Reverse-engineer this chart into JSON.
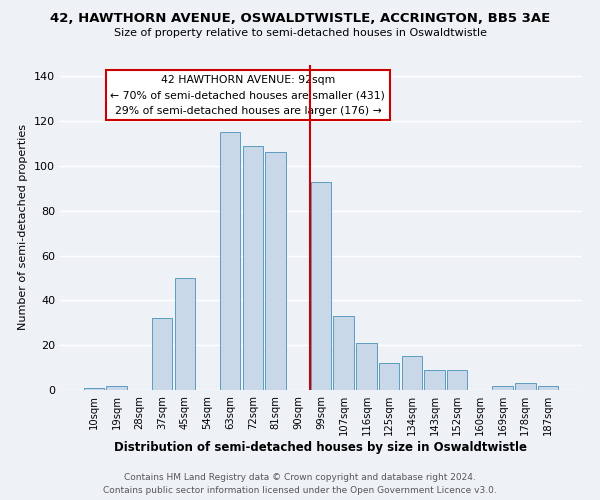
{
  "title1": "42, HAWTHORN AVENUE, OSWALDTWISTLE, ACCRINGTON, BB5 3AE",
  "title2": "Size of property relative to semi-detached houses in Oswaldtwistle",
  "xlabel": "Distribution of semi-detached houses by size in Oswaldtwistle",
  "ylabel": "Number of semi-detached properties",
  "bin_labels": [
    "10sqm",
    "19sqm",
    "28sqm",
    "37sqm",
    "45sqm",
    "54sqm",
    "63sqm",
    "72sqm",
    "81sqm",
    "90sqm",
    "99sqm",
    "107sqm",
    "116sqm",
    "125sqm",
    "134sqm",
    "143sqm",
    "152sqm",
    "160sqm",
    "169sqm",
    "178sqm",
    "187sqm"
  ],
  "bar_heights": [
    1,
    2,
    0,
    32,
    50,
    0,
    115,
    109,
    106,
    0,
    93,
    33,
    21,
    12,
    15,
    9,
    9,
    0,
    2,
    3,
    2
  ],
  "bar_color": "#c8d8e8",
  "bar_edge_color": "#5b9dc0",
  "annotation_title": "42 HAWTHORN AVENUE: 92sqm",
  "annotation_line1": "← 70% of semi-detached houses are smaller (431)",
  "annotation_line2": "29% of semi-detached houses are larger (176) →",
  "annotation_box_color": "#ffffff",
  "annotation_box_edge": "#cc0000",
  "footer1": "Contains HM Land Registry data © Crown copyright and database right 2024.",
  "footer2": "Contains public sector information licensed under the Open Government Licence v3.0.",
  "ylim": [
    0,
    145
  ],
  "background_color": "#eef2f7",
  "grid_color": "#ffffff",
  "title1_fontsize": 9.5,
  "title2_fontsize": 8.0,
  "ylabel_fontsize": 8.0,
  "xlabel_fontsize": 8.5,
  "tick_fontsize": 7.2,
  "ytick_fontsize": 8.0,
  "annotation_fontsize": 7.8,
  "footer_fontsize": 6.5
}
